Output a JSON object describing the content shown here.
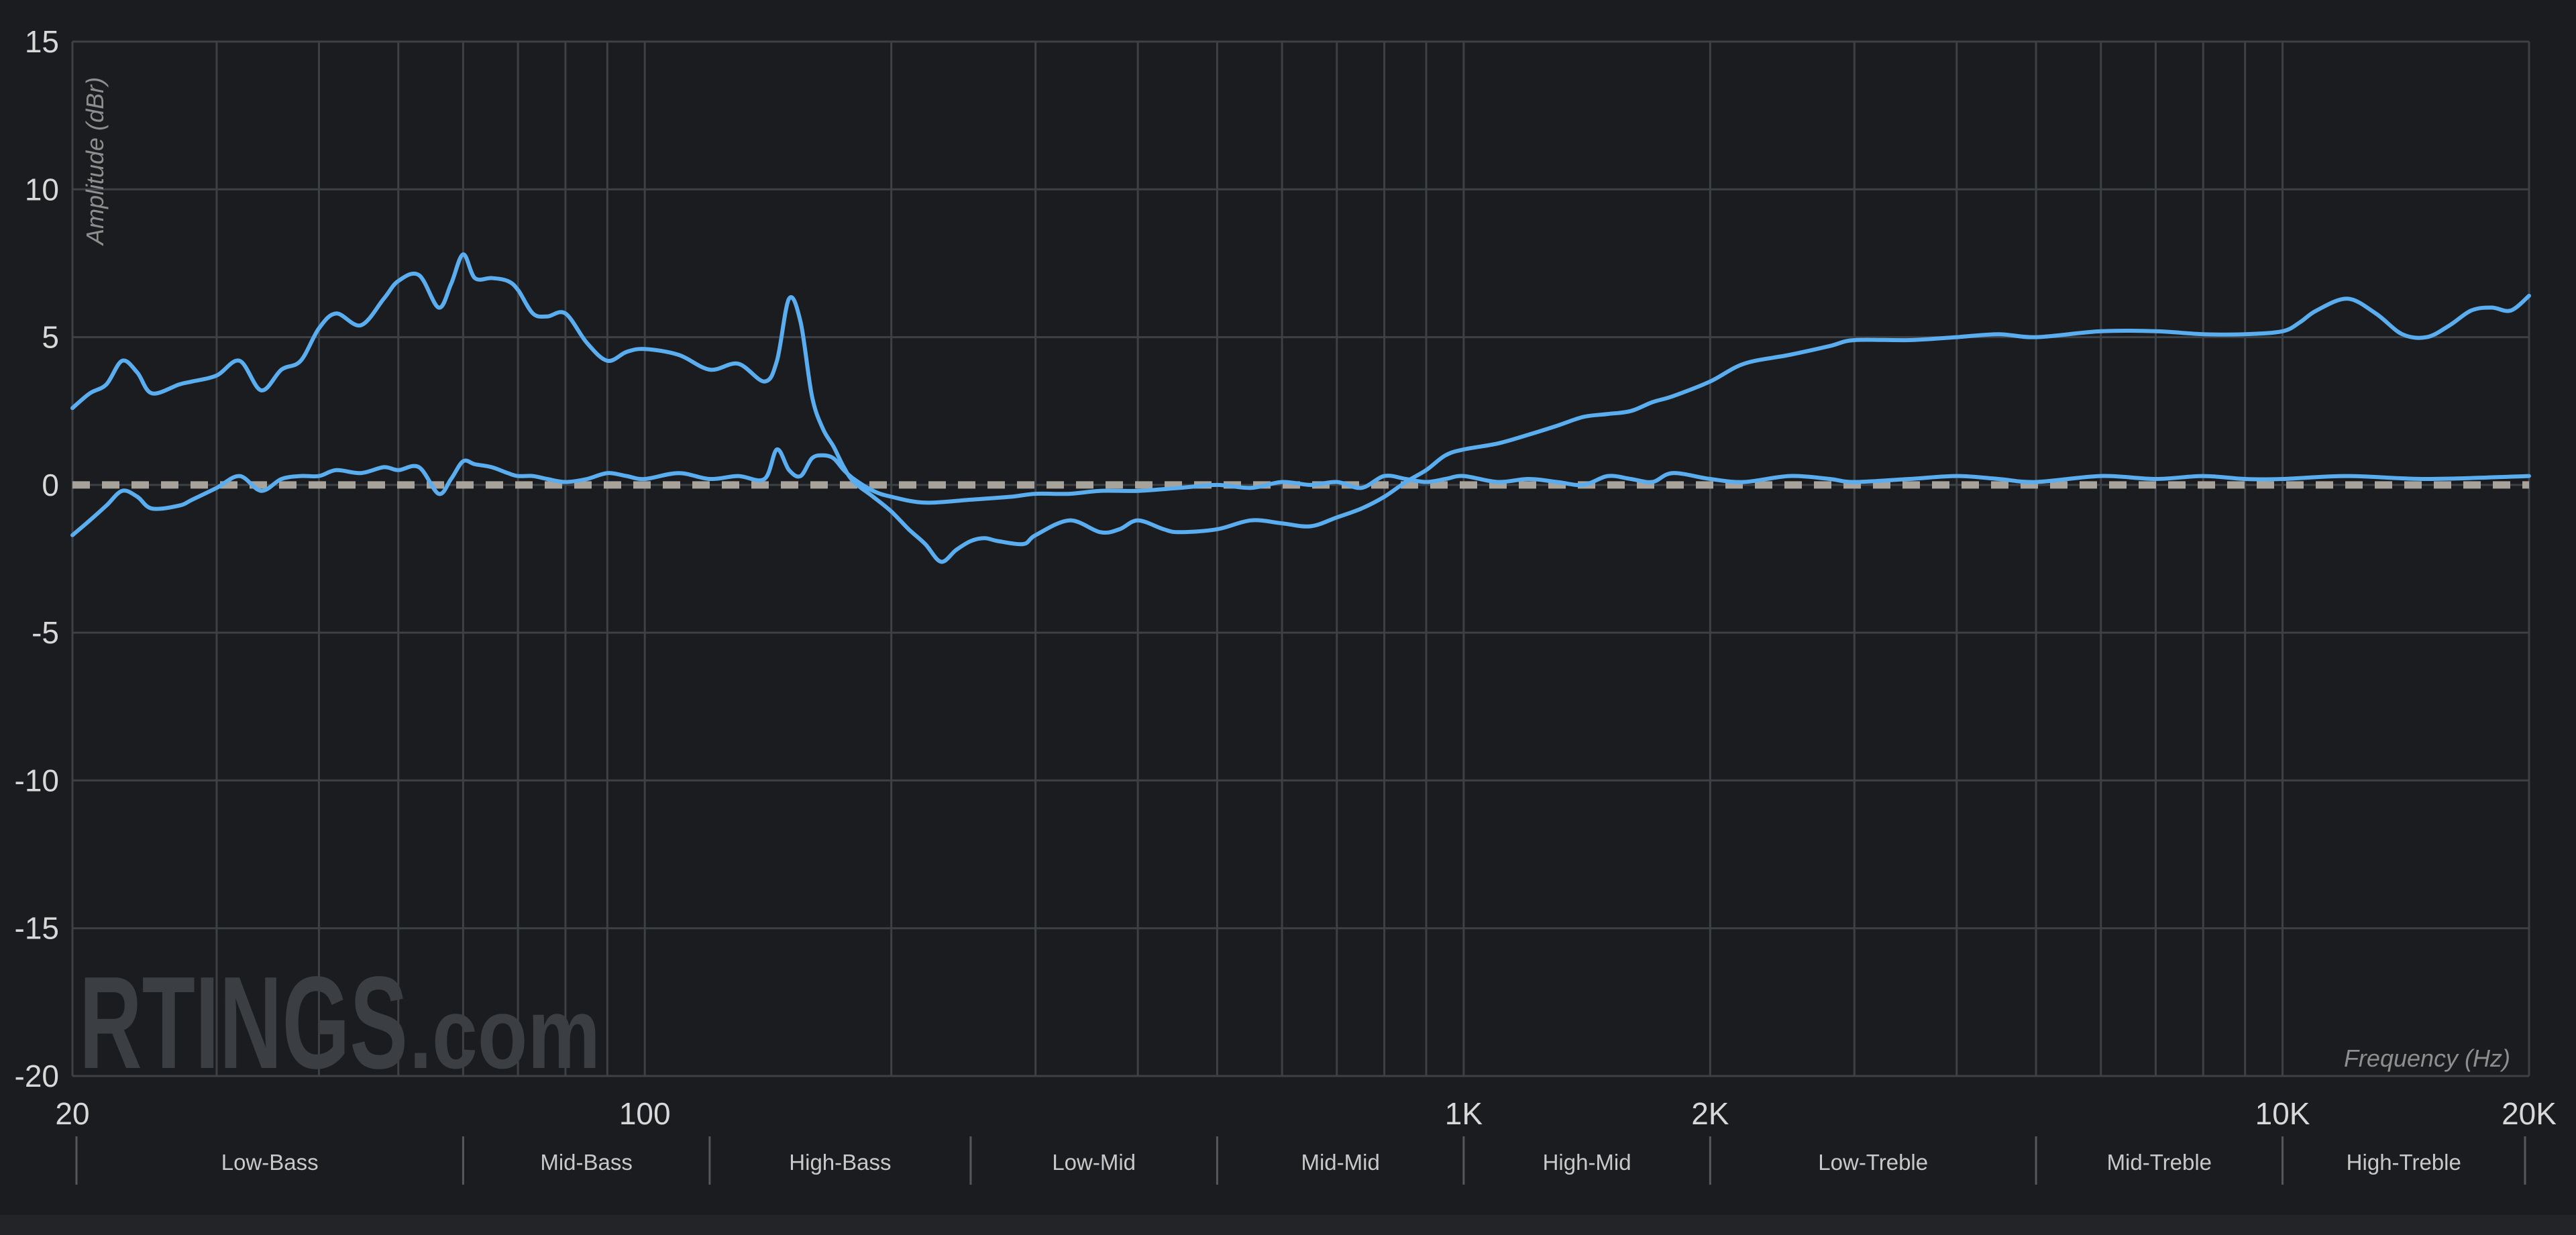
{
  "colors": {
    "background": "#1a1c1f",
    "grid": "#3d4044",
    "curve": "#5aaef0",
    "target": "#a8a39a",
    "watermark": "#3b3e42"
  },
  "watermark": {
    "main": "RTINGS",
    "suffix": ".com"
  },
  "chart_data": {
    "type": "line",
    "xlabel": "Frequency (Hz)",
    "ylabel": "Amplitude (dBr)",
    "xscale": "log",
    "xlim": [
      20,
      20000
    ],
    "ylim": [
      -20,
      15
    ],
    "grid": true,
    "y_ticks": [
      15,
      10,
      5,
      0,
      -5,
      -10,
      -15,
      -20
    ],
    "y_tick_labels": [
      "15",
      "10",
      "5",
      "0",
      "-5",
      "-10",
      "-15",
      "-20"
    ],
    "x_ticks": [
      20,
      100,
      1000,
      2000,
      10000,
      20000
    ],
    "x_tick_labels": [
      "20",
      "100",
      "1K",
      "2K",
      "10K",
      "20K"
    ],
    "x_minor_gridlines": [
      20,
      30,
      40,
      50,
      60,
      70,
      80,
      90,
      100,
      200,
      300,
      400,
      500,
      600,
      700,
      800,
      900,
      1000,
      2000,
      3000,
      4000,
      5000,
      6000,
      7000,
      8000,
      9000,
      10000,
      20000
    ],
    "bands": [
      {
        "label": "Low-Bass",
        "from": 20,
        "to": 60
      },
      {
        "label": "Mid-Bass",
        "from": 60,
        "to": 120
      },
      {
        "label": "High-Bass",
        "from": 120,
        "to": 250
      },
      {
        "label": "Low-Mid",
        "from": 250,
        "to": 500
      },
      {
        "label": "Mid-Mid",
        "from": 500,
        "to": 1000
      },
      {
        "label": "High-Mid",
        "from": 1000,
        "to": 2000
      },
      {
        "label": "Low-Treble",
        "from": 2000,
        "to": 5000
      },
      {
        "label": "Mid-Treble",
        "from": 5000,
        "to": 10000
      },
      {
        "label": "High-Treble",
        "from": 10000,
        "to": 20000
      }
    ],
    "target": {
      "y": 0,
      "style": "dashed"
    },
    "series": [
      {
        "x": [
          20,
          21,
          22,
          23,
          24,
          25,
          27,
          28,
          30,
          32,
          34,
          36,
          38,
          40,
          42,
          45,
          48,
          50,
          53,
          56,
          58,
          60,
          62,
          65,
          68,
          70,
          73,
          76,
          80,
          85,
          90,
          95,
          100,
          110,
          120,
          130,
          140,
          145,
          150,
          155,
          160,
          165,
          170,
          175,
          180,
          190,
          200,
          210,
          220,
          230,
          240,
          250,
          260,
          270,
          290,
          300,
          330,
          360,
          380,
          400,
          430,
          450,
          500,
          550,
          600,
          650,
          700,
          750,
          800,
          850,
          900,
          950,
          1000,
          1100,
          1200,
          1300,
          1400,
          1500,
          1600,
          1700,
          1800,
          2000,
          2200,
          2500,
          2800,
          3000,
          3500,
          4000,
          4500,
          5000,
          6000,
          7000,
          8000,
          9000,
          10000,
          10500,
          11000,
          12000,
          13000,
          14000,
          15000,
          16000,
          17000,
          18000,
          19000,
          20000
        ],
        "y": [
          2.6,
          3.1,
          3.4,
          4.2,
          3.8,
          3.1,
          3.4,
          3.5,
          3.7,
          4.2,
          3.2,
          3.9,
          4.2,
          5.3,
          5.8,
          5.4,
          6.3,
          6.9,
          7.1,
          6.0,
          6.8,
          7.8,
          7.0,
          7.0,
          6.9,
          6.6,
          5.8,
          5.7,
          5.8,
          4.8,
          4.2,
          4.5,
          4.6,
          4.4,
          3.9,
          4.1,
          3.5,
          4.2,
          6.3,
          5.5,
          3.0,
          1.9,
          1.3,
          0.6,
          0.1,
          -0.4,
          -0.9,
          -1.5,
          -2.0,
          -2.6,
          -2.2,
          -1.9,
          -1.8,
          -1.9,
          -2.0,
          -1.7,
          -1.2,
          -1.6,
          -1.5,
          -1.2,
          -1.5,
          -1.6,
          -1.5,
          -1.2,
          -1.3,
          -1.4,
          -1.1,
          -0.8,
          -0.4,
          0.1,
          0.5,
          1.0,
          1.2,
          1.4,
          1.7,
          2.0,
          2.3,
          2.4,
          2.5,
          2.8,
          3.0,
          3.5,
          4.1,
          4.4,
          4.7,
          4.9,
          4.9,
          5.0,
          5.1,
          5.0,
          5.2,
          5.2,
          5.1,
          5.1,
          5.2,
          5.5,
          5.9,
          6.3,
          5.8,
          5.1,
          5.0,
          5.4,
          5.9,
          6.0,
          5.9,
          6.4
        ],
        "color": "#5aaef0"
      },
      {
        "x": [
          20,
          21,
          22,
          23,
          24,
          25,
          27,
          28,
          30,
          32,
          34,
          36,
          38,
          40,
          42,
          45,
          48,
          50,
          53,
          56,
          58,
          60,
          62,
          65,
          68,
          70,
          73,
          76,
          80,
          85,
          90,
          95,
          100,
          110,
          120,
          130,
          140,
          145,
          150,
          155,
          160,
          165,
          170,
          175,
          180,
          190,
          200,
          220,
          250,
          280,
          300,
          330,
          360,
          400,
          450,
          500,
          550,
          600,
          650,
          700,
          750,
          800,
          850,
          900,
          950,
          1000,
          1100,
          1200,
          1300,
          1400,
          1500,
          1600,
          1700,
          1800,
          2000,
          2200,
          2500,
          2800,
          3000,
          3500,
          4000,
          4500,
          5000,
          6000,
          7000,
          8000,
          9000,
          10000,
          12000,
          15000,
          20000
        ],
        "y": [
          -1.7,
          -1.2,
          -0.7,
          -0.2,
          -0.4,
          -0.8,
          -0.7,
          -0.5,
          -0.1,
          0.3,
          -0.2,
          0.2,
          0.3,
          0.3,
          0.5,
          0.4,
          0.6,
          0.5,
          0.6,
          -0.3,
          0.2,
          0.8,
          0.7,
          0.6,
          0.4,
          0.3,
          0.3,
          0.2,
          0.1,
          0.2,
          0.4,
          0.3,
          0.2,
          0.4,
          0.2,
          0.3,
          0.2,
          1.2,
          0.5,
          0.3,
          0.9,
          1.0,
          0.9,
          0.5,
          0.2,
          -0.2,
          -0.4,
          -0.6,
          -0.5,
          -0.4,
          -0.3,
          -0.3,
          -0.2,
          -0.2,
          -0.1,
          0.0,
          -0.1,
          0.1,
          0.0,
          0.1,
          -0.1,
          0.3,
          0.2,
          0.1,
          0.2,
          0.3,
          0.1,
          0.2,
          0.1,
          0.0,
          0.3,
          0.2,
          0.1,
          0.4,
          0.2,
          0.1,
          0.3,
          0.2,
          0.1,
          0.2,
          0.3,
          0.2,
          0.1,
          0.3,
          0.2,
          0.3,
          0.2,
          0.2,
          0.3,
          0.2,
          0.3
        ],
        "color": "#5aaef0"
      }
    ]
  }
}
